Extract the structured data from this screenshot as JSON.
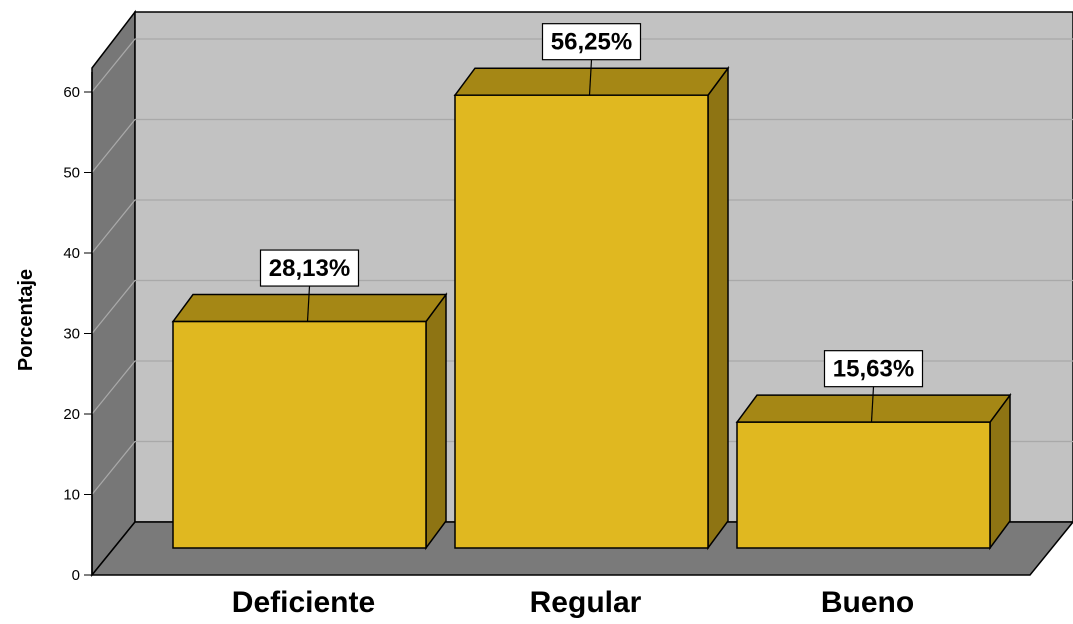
{
  "chart_data": {
    "type": "bar",
    "categories": [
      "Deficiente",
      "Regular",
      "Bueno"
    ],
    "values": [
      28.13,
      56.25,
      15.63
    ],
    "data_labels": [
      "28,13%",
      "56,25%",
      "15,63%"
    ],
    "ylabel": "Porcentaje",
    "xlabel": "",
    "ylim": [
      0,
      60
    ],
    "yticks": [
      "0",
      "10",
      "20",
      "30",
      "40",
      "50",
      "60"
    ],
    "grid": true,
    "style": "3d",
    "colors": {
      "bar_front": "#e0b820",
      "bar_top": "#a58715",
      "bar_side": "#8e7413",
      "back_wall": "#c2c2c2",
      "side_wall": "#777777",
      "floor": "#7a7a7a",
      "gridline": "#a9a9a9"
    }
  }
}
